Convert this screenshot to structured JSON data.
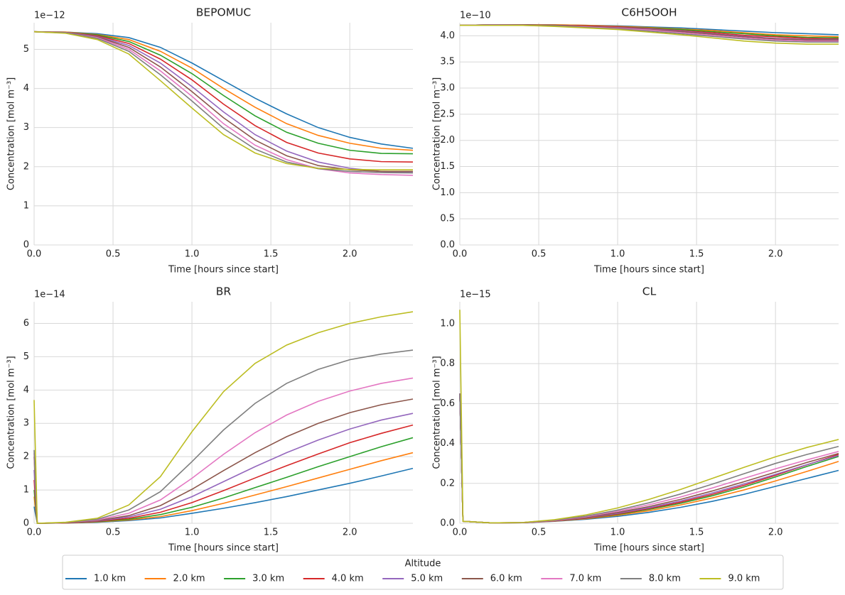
{
  "chart_data": [
    {
      "type": "line",
      "title": "BEPOMUC",
      "xlabel": "Time [hours since start]",
      "ylabel": "Concentration [mol m⁻³]",
      "y_offset_label": "1e−12",
      "x": [
        0,
        0.2,
        0.4,
        0.6,
        0.8,
        1.0,
        1.2,
        1.4,
        1.6,
        1.8,
        2.0,
        2.2,
        2.4
      ],
      "series": [
        {
          "name": "1.0 km",
          "color": "#1f77b4",
          "values": [
            5.45,
            5.44,
            5.4,
            5.3,
            5.05,
            4.65,
            4.2,
            3.75,
            3.35,
            3.0,
            2.75,
            2.58,
            2.47
          ]
        },
        {
          "name": "2.0 km",
          "color": "#ff7f0e",
          "values": [
            5.45,
            5.44,
            5.38,
            5.25,
            4.95,
            4.52,
            4.0,
            3.52,
            3.1,
            2.8,
            2.6,
            2.47,
            2.42
          ]
        },
        {
          "name": "3.0 km",
          "color": "#2ca02c",
          "values": [
            5.45,
            5.43,
            5.37,
            5.2,
            4.85,
            4.38,
            3.82,
            3.3,
            2.88,
            2.6,
            2.42,
            2.34,
            2.33
          ]
        },
        {
          "name": "4.0 km",
          "color": "#d62728",
          "values": [
            5.45,
            5.43,
            5.35,
            5.15,
            4.75,
            4.22,
            3.6,
            3.05,
            2.62,
            2.35,
            2.2,
            2.13,
            2.12
          ]
        },
        {
          "name": "5.0 km",
          "color": "#9467bd",
          "values": [
            5.45,
            5.43,
            5.33,
            5.1,
            4.65,
            4.05,
            3.4,
            2.82,
            2.4,
            2.12,
            1.96,
            1.88,
            1.85
          ]
        },
        {
          "name": "6.0 km",
          "color": "#8c564b",
          "values": [
            5.45,
            5.42,
            5.32,
            5.05,
            4.55,
            3.92,
            3.25,
            2.68,
            2.28,
            2.03,
            1.92,
            1.88,
            1.88
          ]
        },
        {
          "name": "7.0 km",
          "color": "#e377c2",
          "values": [
            5.45,
            5.42,
            5.3,
            5.0,
            4.45,
            3.8,
            3.1,
            2.55,
            2.18,
            1.95,
            1.84,
            1.8,
            1.78
          ]
        },
        {
          "name": "8.0 km",
          "color": "#7f7f7f",
          "values": [
            5.45,
            5.42,
            5.28,
            4.95,
            4.35,
            3.68,
            2.98,
            2.45,
            2.12,
            1.95,
            1.88,
            1.85,
            1.84
          ]
        },
        {
          "name": "9.0 km",
          "color": "#bcbd22",
          "values": [
            5.45,
            5.41,
            5.25,
            4.88,
            4.2,
            3.5,
            2.82,
            2.35,
            2.08,
            1.96,
            1.93,
            1.92,
            1.92
          ]
        }
      ],
      "xlim": [
        0,
        2.4
      ],
      "ylim": [
        0,
        5.68
      ],
      "xticks": [
        {
          "value": 0,
          "label": "0.0"
        },
        {
          "value": 0.5,
          "label": "0.5"
        },
        {
          "value": 1,
          "label": "1.0"
        },
        {
          "value": 1.5,
          "label": "1.5"
        },
        {
          "value": 2,
          "label": "2.0"
        }
      ],
      "yticks": [
        0,
        1,
        2,
        3,
        4,
        5
      ],
      "grid": true
    },
    {
      "type": "line",
      "title": "C6H5OOH",
      "xlabel": "Time [hours since start]",
      "ylabel": "Concentration [mol m⁻³]",
      "y_offset_label": "1e−10",
      "x": [
        0,
        0.2,
        0.4,
        0.6,
        0.8,
        1.0,
        1.2,
        1.4,
        1.6,
        1.8,
        2.0,
        2.2,
        2.4
      ],
      "series": [
        {
          "name": "1.0 km",
          "color": "#1f77b4",
          "values": [
            4.2,
            4.21,
            4.21,
            4.21,
            4.2,
            4.19,
            4.17,
            4.15,
            4.12,
            4.09,
            4.06,
            4.04,
            4.02
          ]
        },
        {
          "name": "2.0 km",
          "color": "#ff7f0e",
          "values": [
            4.2,
            4.21,
            4.21,
            4.21,
            4.2,
            4.18,
            4.16,
            4.13,
            4.1,
            4.06,
            4.02,
            4.0,
            3.98
          ]
        },
        {
          "name": "3.0 km",
          "color": "#2ca02c",
          "values": [
            4.2,
            4.21,
            4.21,
            4.2,
            4.19,
            4.17,
            4.15,
            4.12,
            4.08,
            4.04,
            4.0,
            3.97,
            3.96
          ]
        },
        {
          "name": "4.0 km",
          "color": "#d62728",
          "values": [
            4.2,
            4.21,
            4.21,
            4.2,
            4.19,
            4.17,
            4.14,
            4.1,
            4.06,
            4.01,
            3.98,
            3.95,
            3.94
          ]
        },
        {
          "name": "5.0 km",
          "color": "#9467bd",
          "values": [
            4.2,
            4.21,
            4.21,
            4.2,
            4.18,
            4.16,
            4.13,
            4.09,
            4.04,
            3.99,
            3.95,
            3.93,
            3.93
          ]
        },
        {
          "name": "6.0 km",
          "color": "#8c564b",
          "values": [
            4.2,
            4.2,
            4.21,
            4.2,
            4.18,
            4.15,
            4.12,
            4.08,
            4.03,
            3.98,
            3.94,
            3.92,
            3.92
          ]
        },
        {
          "name": "7.0 km",
          "color": "#e377c2",
          "values": [
            4.2,
            4.2,
            4.2,
            4.19,
            4.17,
            4.14,
            4.11,
            4.06,
            4.01,
            3.96,
            3.92,
            3.9,
            3.9
          ]
        },
        {
          "name": "8.0 km",
          "color": "#7f7f7f",
          "values": [
            4.2,
            4.2,
            4.2,
            4.19,
            4.16,
            4.13,
            4.09,
            4.04,
            3.99,
            3.94,
            3.9,
            3.88,
            3.88
          ]
        },
        {
          "name": "9.0 km",
          "color": "#bcbd22",
          "values": [
            4.2,
            4.2,
            4.2,
            4.18,
            4.15,
            4.12,
            4.07,
            4.02,
            3.96,
            3.9,
            3.86,
            3.84,
            3.84
          ]
        }
      ],
      "xlim": [
        0,
        2.4
      ],
      "ylim": [
        0,
        4.25
      ],
      "xticks": [
        {
          "value": 0,
          "label": "0.0"
        },
        {
          "value": 0.5,
          "label": "0.5"
        },
        {
          "value": 1,
          "label": "1.0"
        },
        {
          "value": 1.5,
          "label": "1.5"
        },
        {
          "value": 2,
          "label": "2.0"
        }
      ],
      "yticks": [
        {
          "value": 0,
          "label": "0.0"
        },
        {
          "value": 0.5,
          "label": "0.5"
        },
        {
          "value": 1,
          "label": "1.0"
        },
        {
          "value": 1.5,
          "label": "1.5"
        },
        {
          "value": 2,
          "label": "2.0"
        },
        {
          "value": 2.5,
          "label": "2.5"
        },
        {
          "value": 3,
          "label": "3.0"
        },
        {
          "value": 3.5,
          "label": "3.5"
        },
        {
          "value": 4,
          "label": "4.0"
        }
      ],
      "grid": true
    },
    {
      "type": "line",
      "title": "BR",
      "xlabel": "Time [hours since start]",
      "ylabel": "Concentration [mol m⁻³]",
      "y_offset_label": "1e−14",
      "x": [
        0,
        0.02,
        0.2,
        0.4,
        0.6,
        0.8,
        1.0,
        1.2,
        1.4,
        1.6,
        1.8,
        2.0,
        2.2,
        2.4
      ],
      "series": [
        {
          "name": "1.0 km",
          "color": "#1f77b4",
          "values": [
            0.5,
            0,
            0.01,
            0.03,
            0.08,
            0.16,
            0.3,
            0.45,
            0.62,
            0.8,
            1.0,
            1.2,
            1.42,
            1.65
          ]
        },
        {
          "name": "2.0 km",
          "color": "#ff7f0e",
          "values": [
            0.8,
            0,
            0.01,
            0.04,
            0.1,
            0.2,
            0.38,
            0.6,
            0.85,
            1.1,
            1.36,
            1.62,
            1.88,
            2.12
          ]
        },
        {
          "name": "3.0 km",
          "color": "#2ca02c",
          "values": [
            1.0,
            0,
            0.01,
            0.05,
            0.12,
            0.26,
            0.48,
            0.76,
            1.07,
            1.38,
            1.7,
            2.0,
            2.3,
            2.57
          ]
        },
        {
          "name": "4.0 km",
          "color": "#d62728",
          "values": [
            1.3,
            0,
            0.01,
            0.06,
            0.15,
            0.33,
            0.62,
            0.98,
            1.36,
            1.73,
            2.08,
            2.42,
            2.7,
            2.95
          ]
        },
        {
          "name": "5.0 km",
          "color": "#9467bd",
          "values": [
            1.6,
            0,
            0.02,
            0.07,
            0.19,
            0.42,
            0.8,
            1.25,
            1.7,
            2.12,
            2.5,
            2.83,
            3.1,
            3.3
          ]
        },
        {
          "name": "6.0 km",
          "color": "#8c564b",
          "values": [
            2.0,
            0,
            0.02,
            0.08,
            0.23,
            0.53,
            1.02,
            1.58,
            2.12,
            2.6,
            3.0,
            3.32,
            3.56,
            3.73
          ]
        },
        {
          "name": "7.0 km",
          "color": "#e377c2",
          "values": [
            2.1,
            0,
            0.02,
            0.1,
            0.3,
            0.7,
            1.35,
            2.07,
            2.72,
            3.25,
            3.66,
            3.97,
            4.2,
            4.36
          ]
        },
        {
          "name": "8.0 km",
          "color": "#7f7f7f",
          "values": [
            2.2,
            0,
            0.02,
            0.12,
            0.4,
            0.95,
            1.85,
            2.8,
            3.6,
            4.2,
            4.62,
            4.91,
            5.08,
            5.2
          ]
        },
        {
          "name": "9.0 km",
          "color": "#bcbd22",
          "values": [
            3.7,
            0,
            0.03,
            0.15,
            0.55,
            1.4,
            2.75,
            3.95,
            4.8,
            5.35,
            5.72,
            6.0,
            6.2,
            6.35
          ]
        }
      ],
      "xlim": [
        0,
        2.4
      ],
      "ylim": [
        0,
        6.65
      ],
      "xticks": [
        {
          "value": 0,
          "label": "0.0"
        },
        {
          "value": 0.5,
          "label": "0.5"
        },
        {
          "value": 1,
          "label": "1.0"
        },
        {
          "value": 1.5,
          "label": "1.5"
        },
        {
          "value": 2,
          "label": "2.0"
        }
      ],
      "yticks": [
        0,
        1,
        2,
        3,
        4,
        5,
        6
      ],
      "grid": true
    },
    {
      "type": "line",
      "title": "CL",
      "xlabel": "Time [hours since start]",
      "ylabel": "Concentration [mol m⁻³]",
      "y_offset_label": "1e−15",
      "x": [
        0,
        0.02,
        0.2,
        0.4,
        0.6,
        0.8,
        1.0,
        1.2,
        1.4,
        1.6,
        1.8,
        2.0,
        2.2,
        2.4
      ],
      "series": [
        {
          "name": "1.0 km",
          "color": "#1f77b4",
          "values": [
            0.65,
            0.01,
            0.002,
            0.003,
            0.01,
            0.02,
            0.035,
            0.055,
            0.08,
            0.11,
            0.145,
            0.185,
            0.225,
            0.265
          ]
        },
        {
          "name": "2.0 km",
          "color": "#ff7f0e",
          "values": [
            0.65,
            0.01,
            0.002,
            0.003,
            0.011,
            0.023,
            0.04,
            0.063,
            0.092,
            0.127,
            0.167,
            0.212,
            0.26,
            0.31
          ]
        },
        {
          "name": "3.0 km",
          "color": "#2ca02c",
          "values": [
            0.65,
            0.01,
            0.002,
            0.003,
            0.012,
            0.025,
            0.044,
            0.07,
            0.1,
            0.138,
            0.182,
            0.232,
            0.285,
            0.335
          ]
        },
        {
          "name": "4.0 km",
          "color": "#d62728",
          "values": [
            0.65,
            0.01,
            0.002,
            0.003,
            0.012,
            0.026,
            0.047,
            0.074,
            0.106,
            0.145,
            0.19,
            0.24,
            0.293,
            0.345
          ]
        },
        {
          "name": "5.0 km",
          "color": "#9467bd",
          "values": [
            0.65,
            0.01,
            0.002,
            0.003,
            0.013,
            0.028,
            0.05,
            0.078,
            0.112,
            0.152,
            0.197,
            0.245,
            0.294,
            0.34
          ]
        },
        {
          "name": "6.0 km",
          "color": "#8c564b",
          "values": [
            0.65,
            0.01,
            0.002,
            0.004,
            0.014,
            0.03,
            0.054,
            0.084,
            0.12,
            0.162,
            0.208,
            0.256,
            0.305,
            0.35
          ]
        },
        {
          "name": "7.0 km",
          "color": "#e377c2",
          "values": [
            0.65,
            0.01,
            0.002,
            0.004,
            0.015,
            0.033,
            0.06,
            0.093,
            0.132,
            0.177,
            0.225,
            0.273,
            0.318,
            0.36
          ]
        },
        {
          "name": "8.0 km",
          "color": "#7f7f7f",
          "values": [
            0.65,
            0.01,
            0.002,
            0.004,
            0.016,
            0.036,
            0.066,
            0.103,
            0.147,
            0.196,
            0.248,
            0.3,
            0.345,
            0.385
          ]
        },
        {
          "name": "9.0 km",
          "color": "#bcbd22",
          "values": [
            1.07,
            0.01,
            0.002,
            0.004,
            0.018,
            0.042,
            0.077,
            0.12,
            0.17,
            0.225,
            0.28,
            0.333,
            0.38,
            0.42
          ]
        }
      ],
      "xlim": [
        0,
        2.4
      ],
      "ylim": [
        0,
        1.11
      ],
      "xticks": [
        {
          "value": 0,
          "label": "0.0"
        },
        {
          "value": 0.5,
          "label": "0.5"
        },
        {
          "value": 1,
          "label": "1.0"
        },
        {
          "value": 1.5,
          "label": "1.5"
        },
        {
          "value": 2,
          "label": "2.0"
        }
      ],
      "yticks": [
        {
          "value": 0,
          "label": "0.0"
        },
        {
          "value": 0.2,
          "label": "0.2"
        },
        {
          "value": 0.4,
          "label": "0.4"
        },
        {
          "value": 0.6,
          "label": "0.6"
        },
        {
          "value": 0.8,
          "label": "0.8"
        },
        {
          "value": 1,
          "label": "1.0"
        }
      ],
      "grid": true
    }
  ],
  "legend": {
    "title": "Altitude",
    "position": "lower center"
  }
}
